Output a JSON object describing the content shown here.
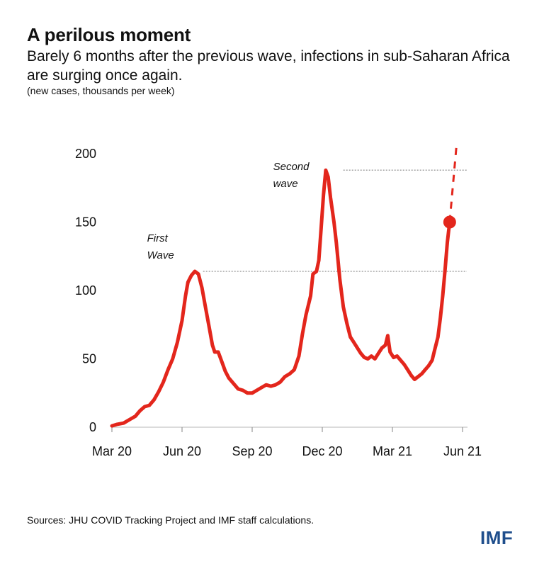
{
  "header": {
    "title": "A perilous moment",
    "subtitle": "Barely 6 months after the previous wave, infections in sub-Saharan Africa are surging once again.",
    "units": "(new cases, thousands per week)"
  },
  "footer": {
    "source": "Sources: JHU COVID Tracking Project and IMF staff calculations.",
    "logo_text": "IMF"
  },
  "colors": {
    "line": "#e3261c",
    "logo": "#1f4e8c"
  },
  "chart_data": {
    "type": "line",
    "title": "A perilous moment",
    "xlabel": "",
    "ylabel": "",
    "ylim": [
      0,
      200
    ],
    "yticks": [
      "0",
      "50",
      "100",
      "150",
      "200"
    ],
    "xticks": [
      "Mar 20",
      "Jun 20",
      "Sep 20",
      "Dec 20",
      "Mar 21",
      "Jun 21"
    ],
    "grid": false,
    "annotations": [
      {
        "text": [
          "First",
          "Wave"
        ],
        "at_month": 3.2,
        "value": 114
      },
      {
        "text": [
          "Second",
          "wave"
        ],
        "at_month": 9.2,
        "value": 188
      }
    ],
    "series": [
      {
        "values": [
          [
            0,
            1
          ],
          [
            0.2,
            2
          ],
          [
            0.5,
            3
          ],
          [
            0.8,
            6
          ],
          [
            1.0,
            8
          ],
          [
            1.2,
            12
          ],
          [
            1.4,
            15
          ],
          [
            1.6,
            16
          ],
          [
            1.8,
            20
          ],
          [
            2.0,
            26
          ],
          [
            2.2,
            33
          ],
          [
            2.4,
            42
          ],
          [
            2.6,
            50
          ],
          [
            2.8,
            62
          ],
          [
            3.0,
            78
          ],
          [
            3.15,
            96
          ],
          [
            3.25,
            106
          ],
          [
            3.4,
            111
          ],
          [
            3.55,
            114
          ],
          [
            3.7,
            112
          ],
          [
            3.85,
            102
          ],
          [
            4.0,
            88
          ],
          [
            4.15,
            74
          ],
          [
            4.3,
            60
          ],
          [
            4.4,
            55
          ],
          [
            4.55,
            55
          ],
          [
            4.7,
            48
          ],
          [
            4.85,
            41
          ],
          [
            5.0,
            36
          ],
          [
            5.2,
            32
          ],
          [
            5.4,
            28
          ],
          [
            5.6,
            27
          ],
          [
            5.8,
            25
          ],
          [
            6.0,
            25
          ],
          [
            6.2,
            27
          ],
          [
            6.4,
            29
          ],
          [
            6.6,
            31
          ],
          [
            6.8,
            30
          ],
          [
            7.0,
            31
          ],
          [
            7.2,
            33
          ],
          [
            7.4,
            37
          ],
          [
            7.6,
            39
          ],
          [
            7.8,
            42
          ],
          [
            8.0,
            52
          ],
          [
            8.15,
            68
          ],
          [
            8.3,
            82
          ],
          [
            8.5,
            96
          ],
          [
            8.6,
            112
          ],
          [
            8.75,
            114
          ],
          [
            8.85,
            122
          ],
          [
            8.95,
            145
          ],
          [
            9.05,
            170
          ],
          [
            9.15,
            188
          ],
          [
            9.25,
            183
          ],
          [
            9.35,
            168
          ],
          [
            9.5,
            150
          ],
          [
            9.6,
            135
          ],
          [
            9.75,
            108
          ],
          [
            9.9,
            88
          ],
          [
            10.05,
            76
          ],
          [
            10.2,
            66
          ],
          [
            10.35,
            62
          ],
          [
            10.5,
            58
          ],
          [
            10.65,
            54
          ],
          [
            10.8,
            51
          ],
          [
            10.95,
            50
          ],
          [
            11.1,
            52
          ],
          [
            11.25,
            50
          ],
          [
            11.4,
            54
          ],
          [
            11.55,
            58
          ],
          [
            11.7,
            60
          ],
          [
            11.8,
            67
          ],
          [
            11.9,
            55
          ],
          [
            12.05,
            51
          ],
          [
            12.2,
            52
          ],
          [
            12.35,
            49
          ],
          [
            12.5,
            46
          ],
          [
            12.65,
            42
          ],
          [
            12.8,
            38
          ],
          [
            12.95,
            35
          ],
          [
            13.1,
            37
          ],
          [
            13.25,
            39
          ],
          [
            13.4,
            42
          ],
          [
            13.55,
            45
          ],
          [
            13.7,
            49
          ],
          [
            13.8,
            56
          ],
          [
            13.95,
            66
          ],
          [
            14.05,
            80
          ],
          [
            14.15,
            96
          ],
          [
            14.25,
            115
          ],
          [
            14.35,
            135
          ],
          [
            14.45,
            150
          ]
        ]
      },
      {
        "style": "dashed",
        "values": [
          [
            14.45,
            150
          ],
          [
            14.75,
            208
          ]
        ]
      }
    ],
    "markers": [
      {
        "at_month": 14.45,
        "value": 150
      }
    ]
  }
}
